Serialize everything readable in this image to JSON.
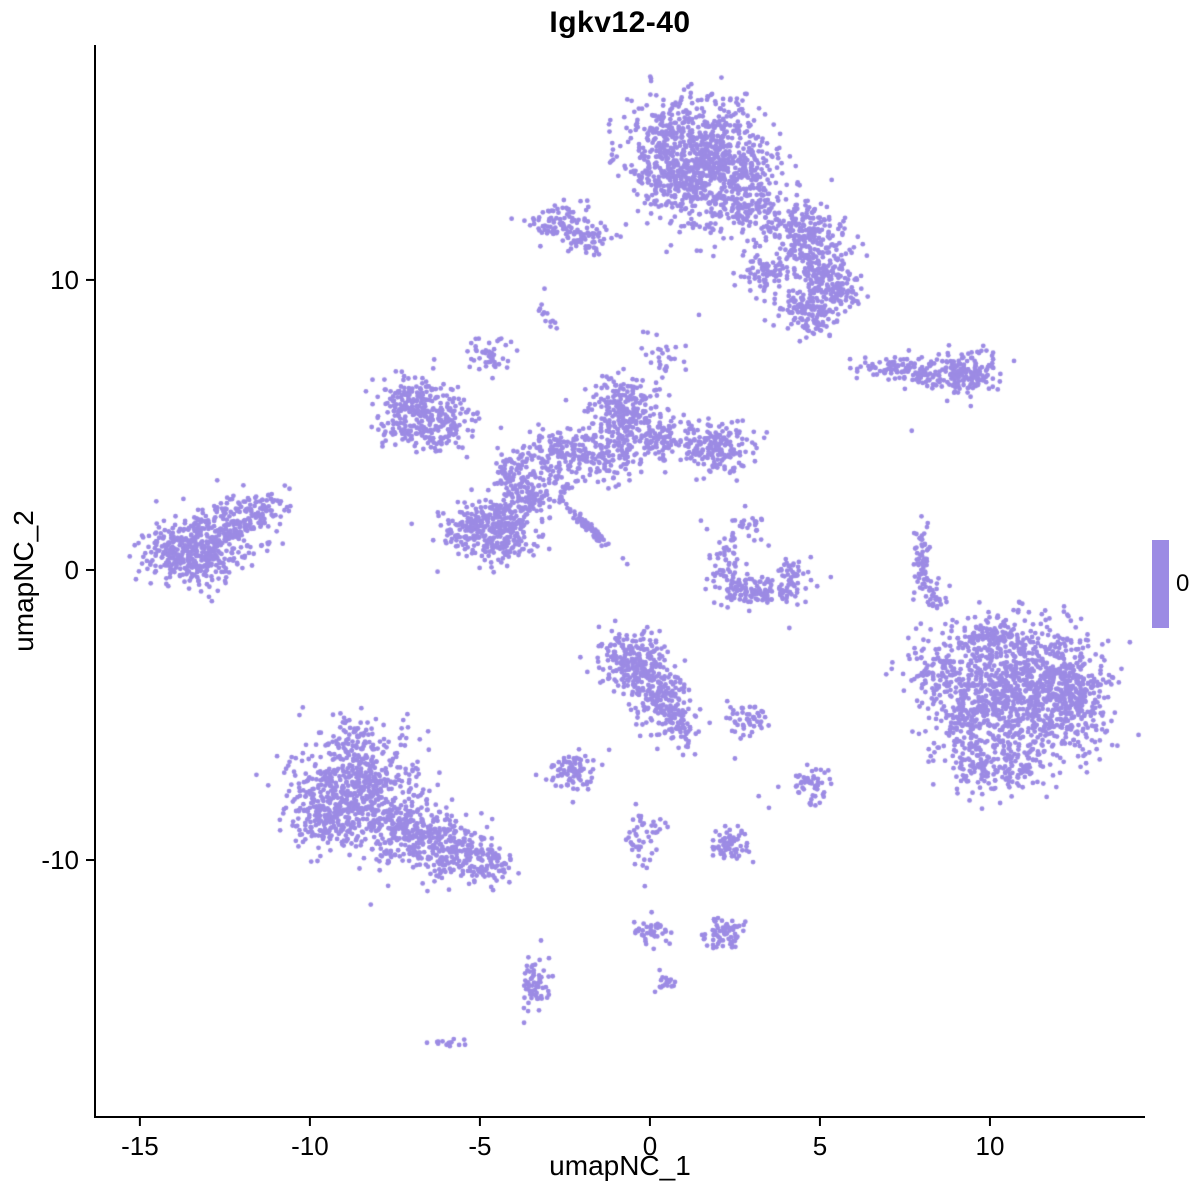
{
  "title": "Igkv12-40",
  "x_axis": {
    "label": "umapNC_1",
    "ticks": [
      -15,
      -10,
      -5,
      0,
      5,
      10
    ]
  },
  "y_axis": {
    "label": "umapNC_2",
    "ticks": [
      -10,
      0,
      10
    ]
  },
  "legend": {
    "label": "0"
  },
  "colors": {
    "point": "#9c8be4",
    "axis": "#000000",
    "background": "#ffffff"
  },
  "chart_data": {
    "type": "scatter",
    "title": "Igkv12-40",
    "xlabel": "umapNC_1",
    "ylabel": "umapNC_2",
    "xlim": [
      -16.32,
      14.56
    ],
    "ylim": [
      -18.86,
      18.1
    ],
    "grid": false,
    "legend_position": "right",
    "expression_value": 0,
    "point_radius_px": 2.4,
    "clusters_format": [
      "center_x",
      "center_y",
      "sigma_x",
      "sigma_y",
      "n_points",
      "rotation_deg"
    ],
    "clusters": [
      [
        1.3,
        14.6,
        1.0,
        0.9,
        550
      ],
      [
        2.3,
        13.6,
        0.8,
        0.8,
        300
      ],
      [
        0.6,
        13.4,
        0.5,
        0.6,
        120
      ],
      [
        1.4,
        12.3,
        0.8,
        0.8,
        90
      ],
      [
        2.9,
        12.6,
        0.5,
        0.5,
        90
      ],
      [
        4.3,
        11.8,
        0.6,
        0.5,
        180
      ],
      [
        5.0,
        10.3,
        0.5,
        0.8,
        220
      ],
      [
        4.6,
        8.9,
        0.5,
        0.4,
        120
      ],
      [
        3.3,
        10.2,
        0.3,
        0.3,
        70
      ],
      [
        5.6,
        9.6,
        0.3,
        0.4,
        60
      ],
      [
        -2.7,
        11.9,
        0.45,
        0.4,
        90
      ],
      [
        -1.8,
        11.4,
        0.3,
        0.35,
        50
      ],
      [
        -3.0,
        8.7,
        0.15,
        0.2,
        12
      ],
      [
        -4.7,
        7.5,
        0.3,
        0.35,
        45
      ],
      [
        0.4,
        7.5,
        0.45,
        0.55,
        30
      ],
      [
        7.2,
        7.0,
        0.55,
        0.18,
        70
      ],
      [
        8.3,
        6.7,
        0.5,
        0.25,
        70
      ],
      [
        9.4,
        6.8,
        0.45,
        0.35,
        160
      ],
      [
        -6.9,
        5.8,
        0.5,
        0.45,
        170
      ],
      [
        -6.0,
        5.2,
        0.5,
        0.4,
        90
      ],
      [
        -6.4,
        4.6,
        0.45,
        0.3,
        60
      ],
      [
        -7.5,
        4.9,
        0.3,
        0.3,
        40
      ],
      [
        -0.8,
        5.5,
        0.5,
        0.55,
        220
      ],
      [
        0.1,
        4.6,
        0.5,
        0.4,
        120
      ],
      [
        1.9,
        4.2,
        0.5,
        0.45,
        190
      ],
      [
        -1.4,
        4.0,
        0.8,
        0.5,
        180
      ],
      [
        -2.9,
        4.2,
        0.5,
        0.35,
        90
      ],
      [
        -4.0,
        3.2,
        0.35,
        0.5,
        90
      ],
      [
        -4.4,
        1.4,
        0.55,
        0.6,
        330
      ],
      [
        -5.6,
        1.5,
        0.35,
        0.35,
        70
      ],
      [
        -3.6,
        2.5,
        0.3,
        0.3,
        60
      ],
      [
        -1.75,
        1.4,
        0.6,
        0.07,
        70,
        -48
      ],
      [
        -2.7,
        3.0,
        0.4,
        0.4,
        50
      ],
      [
        -13.4,
        0.6,
        0.75,
        0.55,
        420
      ],
      [
        -12.2,
        1.6,
        0.6,
        0.5,
        150
      ],
      [
        -11.3,
        2.2,
        0.4,
        0.35,
        50
      ],
      [
        3.2,
        -0.75,
        0.6,
        0.25,
        130
      ],
      [
        2.3,
        0.3,
        0.25,
        0.5,
        60
      ],
      [
        4.2,
        -0.2,
        0.18,
        0.45,
        45
      ],
      [
        2.9,
        1.4,
        0.3,
        0.3,
        20
      ],
      [
        8.0,
        0.3,
        0.12,
        0.6,
        60
      ],
      [
        8.35,
        -1.0,
        0.18,
        0.3,
        30
      ],
      [
        11.2,
        -4.2,
        1.05,
        1.15,
        850
      ],
      [
        9.4,
        -5.0,
        0.65,
        0.85,
        240
      ],
      [
        8.5,
        -3.4,
        0.5,
        0.6,
        120
      ],
      [
        12.5,
        -4.5,
        0.45,
        0.9,
        180
      ],
      [
        10.4,
        -6.8,
        0.8,
        0.45,
        170
      ],
      [
        10.0,
        -2.3,
        0.6,
        0.4,
        120
      ],
      [
        -0.5,
        -3.2,
        0.55,
        0.5,
        240
      ],
      [
        0.3,
        -4.4,
        0.45,
        0.55,
        150
      ],
      [
        0.9,
        -5.4,
        0.3,
        0.4,
        70
      ],
      [
        2.8,
        -5.1,
        0.27,
        0.27,
        50
      ],
      [
        -2.3,
        -7.0,
        0.38,
        0.38,
        85
      ],
      [
        -8.6,
        -7.7,
        1.0,
        0.95,
        600
      ],
      [
        -7.2,
        -9.0,
        0.8,
        0.6,
        260
      ],
      [
        -5.8,
        -9.7,
        0.6,
        0.5,
        170
      ],
      [
        -4.8,
        -10.2,
        0.4,
        0.3,
        80
      ],
      [
        -9.6,
        -8.5,
        0.45,
        0.6,
        110
      ],
      [
        -8.7,
        -5.9,
        0.4,
        0.5,
        70
      ],
      [
        4.7,
        -7.4,
        0.3,
        0.3,
        55
      ],
      [
        -0.2,
        -9.2,
        0.3,
        0.5,
        45
      ],
      [
        0.0,
        -12.4,
        0.25,
        0.25,
        40
      ],
      [
        2.2,
        -12.5,
        0.3,
        0.28,
        70
      ],
      [
        2.3,
        -9.5,
        0.3,
        0.3,
        70
      ],
      [
        -3.4,
        -14.2,
        0.22,
        0.5,
        65
      ],
      [
        0.5,
        -14.2,
        0.16,
        0.16,
        18
      ],
      [
        -6.0,
        -16.3,
        0.25,
        0.08,
        14
      ]
    ],
    "singles": [
      [
        -10.6,
        2.8
      ],
      [
        7.7,
        4.8
      ],
      [
        -3.1,
        9.7
      ],
      [
        1.5,
        1.7
      ],
      [
        2.8,
        2.2
      ],
      [
        4.1,
        -2.0
      ],
      [
        3.2,
        -7.8
      ],
      [
        3.5,
        -8.2
      ],
      [
        0.0,
        -10.0
      ],
      [
        -0.15,
        -10.9
      ],
      [
        0.05,
        -11.8
      ],
      [
        -5.3,
        7.0
      ],
      [
        5.5,
        8.6
      ],
      [
        2.5,
        -6.5
      ],
      [
        -1.2,
        -6.2
      ]
    ]
  }
}
